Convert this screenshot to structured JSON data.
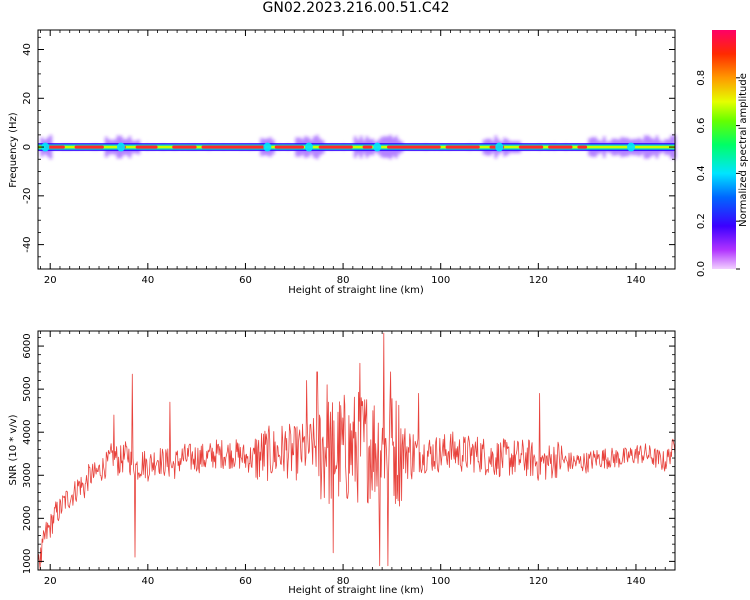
{
  "figure": {
    "title": "GN02.2023.216.00.51.C42"
  },
  "colors": {
    "trace": "#e8423c",
    "background": "#ffffff",
    "axes": "#000000"
  },
  "chart_data": [
    {
      "type": "heatmap",
      "panel": "top",
      "title": "",
      "xlabel": "Height of straight line (km)",
      "ylabel": "Frequency (Hz)",
      "xlim": [
        17.5,
        148
      ],
      "ylim": [
        -50,
        48
      ],
      "x_ticks": [
        20,
        40,
        60,
        80,
        100,
        120,
        140
      ],
      "y_ticks": [
        -40,
        -20,
        0,
        20,
        40
      ],
      "x_tick_labels": [
        "20",
        "40",
        "60",
        "80",
        "100",
        "120",
        "140"
      ],
      "y_tick_labels": [
        "-40",
        "-20",
        "0",
        "20",
        "40"
      ],
      "center_frequency": 0,
      "description_bands": [
        {
          "x_range": [
            17.5,
            148
          ],
          "freq_halfwidth": 1.2,
          "value": 0.45
        },
        {
          "x_range": [
            17.5,
            148
          ],
          "freq_halfwidth": 3.5,
          "value": 0.15
        }
      ],
      "peak_segments": [
        [
          19,
          23
        ],
        [
          25,
          31
        ],
        [
          34,
          35.5
        ],
        [
          37.5,
          42
        ],
        [
          45,
          50
        ],
        [
          51,
          64
        ],
        [
          66,
          72
        ],
        [
          75,
          82
        ],
        [
          84,
          86
        ],
        [
          89,
          100
        ],
        [
          101,
          108
        ],
        [
          110,
          113
        ],
        [
          116,
          121
        ],
        [
          122,
          127
        ],
        [
          128,
          130
        ]
      ],
      "disturbed_ranges": [
        [
          18,
          20
        ],
        [
          31,
          38
        ],
        [
          63,
          66
        ],
        [
          70,
          76
        ],
        [
          82,
          92
        ],
        [
          108,
          116
        ],
        [
          130,
          148
        ]
      ],
      "colorbar": {
        "label": "Normalized spectral amplitude",
        "range": [
          0,
          1
        ],
        "ticks": [
          0.0,
          0.2,
          0.4,
          0.6,
          0.8
        ],
        "tick_labels": [
          "0.0",
          "0.2",
          "0.4",
          "0.6",
          "0.8"
        ],
        "colormap": "gist_rainbow_r"
      }
    },
    {
      "type": "line",
      "panel": "bottom",
      "title": "",
      "xlabel": "Height of straight line (km)",
      "ylabel": "SNR (10 * v/v)",
      "xlim": [
        17.5,
        148
      ],
      "ylim": [
        800,
        6350
      ],
      "x_ticks": [
        20,
        40,
        60,
        80,
        100,
        120,
        140
      ],
      "y_ticks": [
        1000,
        2000,
        3000,
        4000,
        5000,
        6000
      ],
      "x_tick_labels": [
        "20",
        "40",
        "60",
        "80",
        "100",
        "120",
        "140"
      ],
      "y_tick_labels": [
        "1000",
        "2000",
        "3000",
        "4000",
        "5000",
        "6000"
      ],
      "series": [
        {
          "color": "#e8423c",
          "x": [
            17.5,
            18,
            19,
            20,
            21,
            22,
            23,
            24,
            25,
            26,
            27,
            28,
            29,
            30,
            31,
            32,
            33,
            34,
            35,
            36,
            36.5,
            37,
            37.5,
            38,
            39,
            40,
            41,
            42,
            43,
            44,
            45,
            46,
            47,
            48,
            49,
            50,
            52,
            54,
            56,
            58,
            60,
            62,
            64,
            66,
            68,
            70,
            72,
            74,
            76,
            78,
            80,
            82,
            84,
            86,
            88,
            90,
            92,
            94,
            96,
            98,
            100,
            102,
            104,
            106,
            108,
            110,
            112,
            114,
            116,
            118,
            120,
            122,
            124,
            126,
            128,
            130,
            132,
            134,
            136,
            138,
            140,
            142,
            144,
            146,
            148
          ],
          "y": [
            1300,
            1000,
            1600,
            1800,
            2100,
            2200,
            2400,
            2500,
            2600,
            2800,
            2700,
            3000,
            3000,
            3100,
            3200,
            3300,
            3500,
            3300,
            3400,
            3500,
            3300,
            3300,
            3200,
            3200,
            3300,
            3200,
            3300,
            3400,
            3300,
            3300,
            3200,
            3300,
            3400,
            3400,
            3400,
            3400,
            3400,
            3500,
            3500,
            3500,
            3400,
            3400,
            3500,
            3500,
            3600,
            3500,
            3600,
            3700,
            3600,
            3500,
            3600,
            3600,
            3700,
            3700,
            3600,
            3600,
            3600,
            3500,
            3500,
            3500,
            3500,
            3600,
            3500,
            3500,
            3500,
            3400,
            3400,
            3400,
            3400,
            3400,
            3300,
            3300,
            3400,
            3300,
            3300,
            3300,
            3400,
            3400,
            3400,
            3400,
            3500,
            3500,
            3400,
            3300,
            3700
          ]
        }
      ]
    }
  ]
}
